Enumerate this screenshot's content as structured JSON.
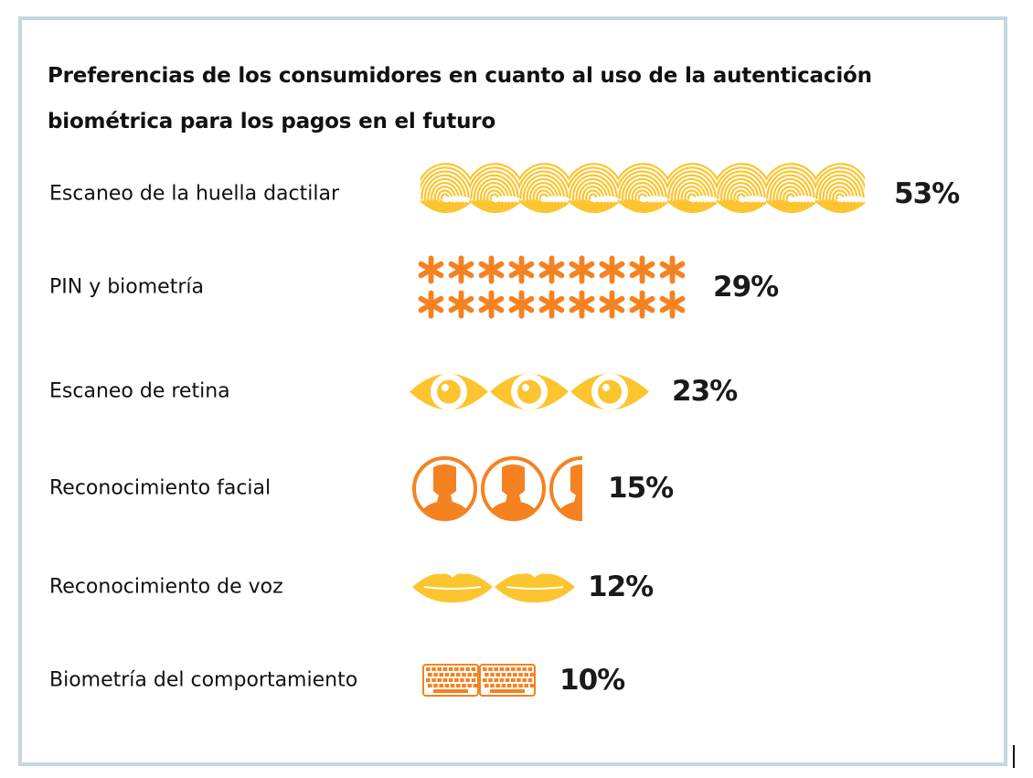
{
  "chart_data": {
    "type": "pictograph",
    "title": "Preferencias de los consumidores en cuanto al uso de la autenticación biométrica para los pagos en el futuro",
    "categories": [
      "Escaneo de la huella dactilar",
      "PIN y biometría",
      "Escaneo de retina",
      "Reconocimiento facial",
      "Reconocimiento de voz",
      "Biometría del comportamiento"
    ],
    "values": [
      53,
      29,
      23,
      15,
      12,
      10
    ],
    "value_labels": [
      "53%",
      "29%",
      "23%",
      "15%",
      "12%",
      "10%"
    ],
    "icons": [
      "fingerprint-icon",
      "asterisk-icon",
      "eye-icon",
      "face-icon",
      "lips-icon",
      "keyboard-icon"
    ],
    "icon_colors": [
      "#fcc42e",
      "#f58220",
      "#fcc42e",
      "#f58220",
      "#fcc42e",
      "#f58220"
    ],
    "unit": "%"
  }
}
